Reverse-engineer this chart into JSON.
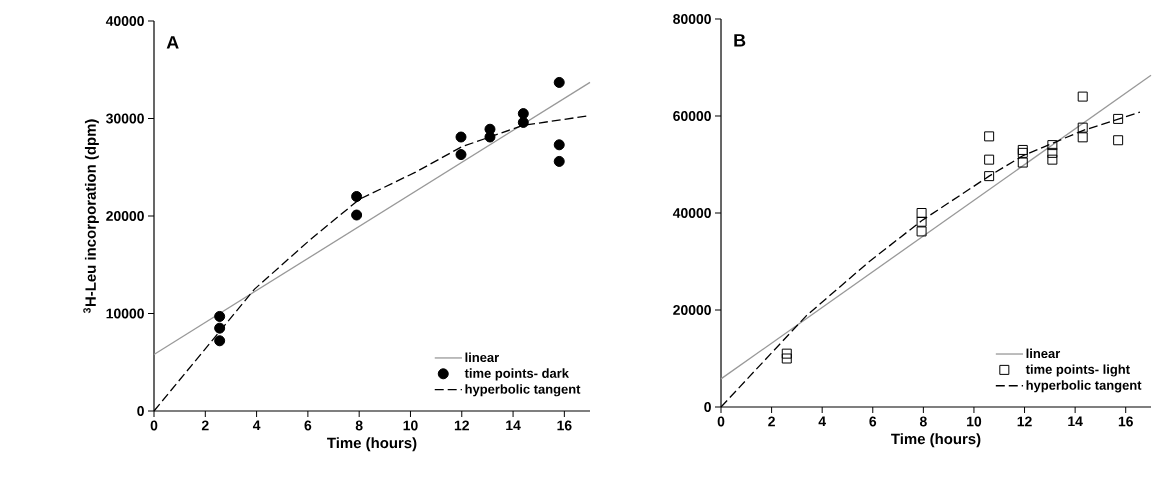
{
  "chart_data": [
    {
      "type": "scatter",
      "title": "A",
      "xlabel": "Time (hours)",
      "ylabel": "$^{3}$H-Leu incorporation (dpm)",
      "xlim": [
        0,
        17
      ],
      "ylim": [
        0,
        40000
      ],
      "xticks": [
        0,
        2,
        4,
        6,
        8,
        10,
        12,
        14,
        16
      ],
      "yticks": [
        0,
        10000,
        20000,
        30000,
        40000
      ],
      "grid": false,
      "legend": "bottom right",
      "series": [
        {
          "name": "linear",
          "type": "line",
          "color": "#999999",
          "line_style": "solid",
          "marker": "none",
          "x": [
            0,
            17
          ],
          "values": [
            5800,
            33700
          ]
        },
        {
          "name": "time points- dark",
          "color": "#000000",
          "marker": "circle",
          "x": [
            2.56,
            2.56,
            2.56,
            7.9,
            7.9,
            11.97,
            11.97,
            13.1,
            13.1,
            14.4,
            14.4,
            15.8,
            15.8,
            15.8
          ],
          "values": [
            9700,
            8500,
            7200,
            22000,
            20100,
            28100,
            26300,
            28900,
            28100,
            30500,
            29600,
            33700,
            27300,
            25600
          ]
        },
        {
          "name": "hyperbolic tangent",
          "type": "line",
          "color": "#000000",
          "line_style": "dashed",
          "marker": "none",
          "x": [
            0,
            3.92,
            6.06,
            8,
            10.2,
            12,
            14.4,
            17
          ],
          "values": [
            0,
            12500,
            17500,
            21700,
            24500,
            27100,
            29300,
            30300
          ]
        }
      ]
    },
    {
      "type": "scatter",
      "title": "B",
      "xlabel": "Time (hours)",
      "xlim": [
        0,
        17
      ],
      "ylim": [
        0,
        80000
      ],
      "xticks": [
        0,
        2,
        4,
        6,
        8,
        10,
        12,
        14,
        16
      ],
      "yticks": [
        0,
        20000,
        40000,
        60000,
        80000
      ],
      "grid": false,
      "legend": "bottom right",
      "series": [
        {
          "name": "linear",
          "type": "line",
          "color": "#999999",
          "line_style": "solid",
          "marker": "none",
          "x": [
            0,
            17
          ],
          "values": [
            5800,
            68400
          ]
        },
        {
          "name": "time points- light",
          "color": "#000000",
          "marker": "square",
          "x": [
            2.6,
            2.6,
            7.93,
            7.93,
            7.93,
            10.6,
            10.6,
            10.6,
            11.93,
            11.93,
            11.93,
            13.1,
            13.1,
            13.1,
            14.3,
            14.3,
            14.3,
            15.7,
            15.7
          ],
          "values": [
            11000,
            10000,
            40000,
            38200,
            36200,
            55800,
            51000,
            47600,
            53000,
            52400,
            50400,
            54000,
            52400,
            51000,
            64000,
            57600,
            55600,
            59400,
            55000
          ]
        },
        {
          "name": "hyperbolic tangent",
          "type": "line",
          "color": "#000000",
          "line_style": "dashed",
          "marker": "none",
          "x": [
            0,
            3.37,
            5.82,
            7.93,
            10.6,
            11.93,
            14.3,
            16.56
          ],
          "values": [
            0,
            18800,
            29800,
            38400,
            47600,
            51800,
            57000,
            60800
          ]
        }
      ]
    }
  ]
}
